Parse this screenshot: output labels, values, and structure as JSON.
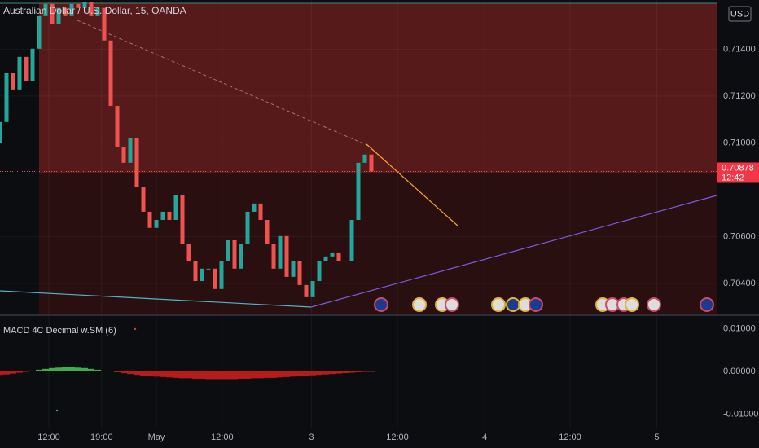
{
  "chart_data": [
    {
      "type": "candlestick",
      "title": "Australian Dollar / U.S. Dollar, 15, OANDA",
      "currency": "USD",
      "last_price_label": "0.70878",
      "countdown": "12:42",
      "up_color": "#26a69a",
      "down_color": "#ef5350",
      "grid": true,
      "x": [
        0,
        1,
        2,
        3,
        4,
        5,
        6,
        7,
        8,
        9,
        10,
        11,
        12,
        13,
        14,
        15,
        16,
        17,
        18,
        19,
        20,
        21,
        22,
        23,
        24,
        25,
        26,
        27,
        28,
        29,
        30,
        31,
        32,
        33,
        34,
        35,
        36,
        37,
        38,
        39,
        40,
        41,
        42,
        43,
        44,
        45,
        46,
        47,
        48,
        49,
        50,
        51,
        52,
        53,
        54,
        55,
        56,
        57
      ],
      "open": [
        0.71,
        0.71089,
        0.71297,
        0.71228,
        0.71367,
        0.71263,
        0.71402,
        0.71541,
        0.71593,
        0.71506,
        0.71576,
        0.71541,
        0.71593,
        0.71576,
        0.716,
        0.71541,
        0.71576,
        0.71437,
        0.71158,
        0.70984,
        0.70915,
        0.71019,
        0.7081,
        0.70706,
        0.70637,
        0.70671,
        0.70706,
        0.70671,
        0.70776,
        0.70567,
        0.70497,
        0.7041,
        0.70463,
        0.70463,
        0.70376,
        0.70497,
        0.70584,
        0.70463,
        0.70567,
        0.70706,
        0.70741,
        0.70671,
        0.70567,
        0.70463,
        0.70602,
        0.70428,
        0.70497,
        0.70393,
        0.70341,
        0.7041,
        0.70497,
        0.70515,
        0.70532,
        0.70497,
        0.70497,
        0.70671,
        0.70915,
        0.7095
      ],
      "close": [
        0.71089,
        0.71297,
        0.71228,
        0.71367,
        0.71263,
        0.71402,
        0.71541,
        0.71593,
        0.71506,
        0.71576,
        0.71541,
        0.71593,
        0.71576,
        0.716,
        0.71541,
        0.71576,
        0.71437,
        0.71158,
        0.70984,
        0.70915,
        0.71019,
        0.7081,
        0.70706,
        0.70637,
        0.70671,
        0.70706,
        0.70671,
        0.70776,
        0.70567,
        0.70497,
        0.7041,
        0.70463,
        0.70463,
        0.70376,
        0.70497,
        0.70584,
        0.70463,
        0.70567,
        0.70706,
        0.70741,
        0.70671,
        0.70567,
        0.70463,
        0.70602,
        0.70428,
        0.70497,
        0.70393,
        0.70341,
        0.7041,
        0.70497,
        0.70515,
        0.70532,
        0.70497,
        0.70497,
        0.70671,
        0.70915,
        0.7095,
        0.70878
      ],
      "xlim": [
        0,
        110
      ],
      "xticks": [
        {
          "value": 7.5,
          "label": "12:00"
        },
        {
          "value": 15.6,
          "label": "19:00"
        },
        {
          "value": 24,
          "label": "May"
        },
        {
          "value": 34.1,
          "label": "12:00"
        },
        {
          "value": 47.8,
          "label": "3"
        },
        {
          "value": 61,
          "label": "12:00"
        },
        {
          "value": 74.4,
          "label": "4"
        },
        {
          "value": 87.5,
          "label": "12:00"
        },
        {
          "value": 100.8,
          "label": "5"
        }
      ],
      "ylim": [
        0.70271,
        0.7161
      ],
      "yticks": [
        {
          "value": 0.704,
          "label": "0.70400"
        },
        {
          "value": 0.706,
          "label": "0.70600"
        },
        {
          "value": 0.71,
          "label": "0.71000"
        },
        {
          "value": 0.712,
          "label": "0.71200"
        },
        {
          "value": 0.714,
          "label": "0.71400"
        }
      ]
    },
    {
      "type": "bar",
      "title": "MACD 4C Decimal w.SM (6)",
      "pos_color": "#3fae49",
      "neg_color": "#b71c1c",
      "x": [
        0,
        1,
        2,
        3,
        4,
        5,
        6,
        7,
        8,
        9,
        10,
        11,
        12,
        13,
        14,
        15,
        16,
        17,
        18,
        19,
        20,
        21,
        22,
        23,
        24,
        25,
        26,
        27,
        28,
        29,
        30,
        31,
        32,
        33,
        34,
        35,
        36,
        37,
        38,
        39,
        40,
        41,
        42,
        43,
        44,
        45,
        46,
        47,
        48,
        49,
        50,
        51,
        52,
        53,
        54,
        55,
        56,
        57
      ],
      "values": [
        -0.0008,
        -0.0007,
        -0.0005,
        -0.0003,
        -0.0001,
        0.0002,
        0.0004,
        0.0006,
        0.0008,
        0.0009,
        0.001,
        0.001,
        0.0009,
        0.0008,
        0.0006,
        0.0004,
        0.0002,
        0.0001,
        -0.0002,
        -0.0004,
        -0.0006,
        -0.0008,
        -0.001,
        -0.0011,
        -0.0012,
        -0.0013,
        -0.0014,
        -0.0015,
        -0.0016,
        -0.0016,
        -0.0017,
        -0.0017,
        -0.0018,
        -0.0018,
        -0.0018,
        -0.0018,
        -0.0018,
        -0.0017,
        -0.0017,
        -0.0016,
        -0.0016,
        -0.0015,
        -0.0015,
        -0.0014,
        -0.0013,
        -0.0012,
        -0.0011,
        -0.001,
        -0.0009,
        -0.0008,
        -0.0007,
        -0.0006,
        -0.0005,
        -0.0004,
        -0.0003,
        -0.0002,
        -0.0001,
        -0.0001
      ],
      "ylim": [
        -0.01314,
        0.01295
      ],
      "yticks": [
        {
          "value": 0.01,
          "label": "0.01000"
        },
        {
          "value": 0,
          "label": "0.00000"
        },
        {
          "value": -0.01,
          "label": "-0.01000"
        }
      ]
    }
  ]
}
